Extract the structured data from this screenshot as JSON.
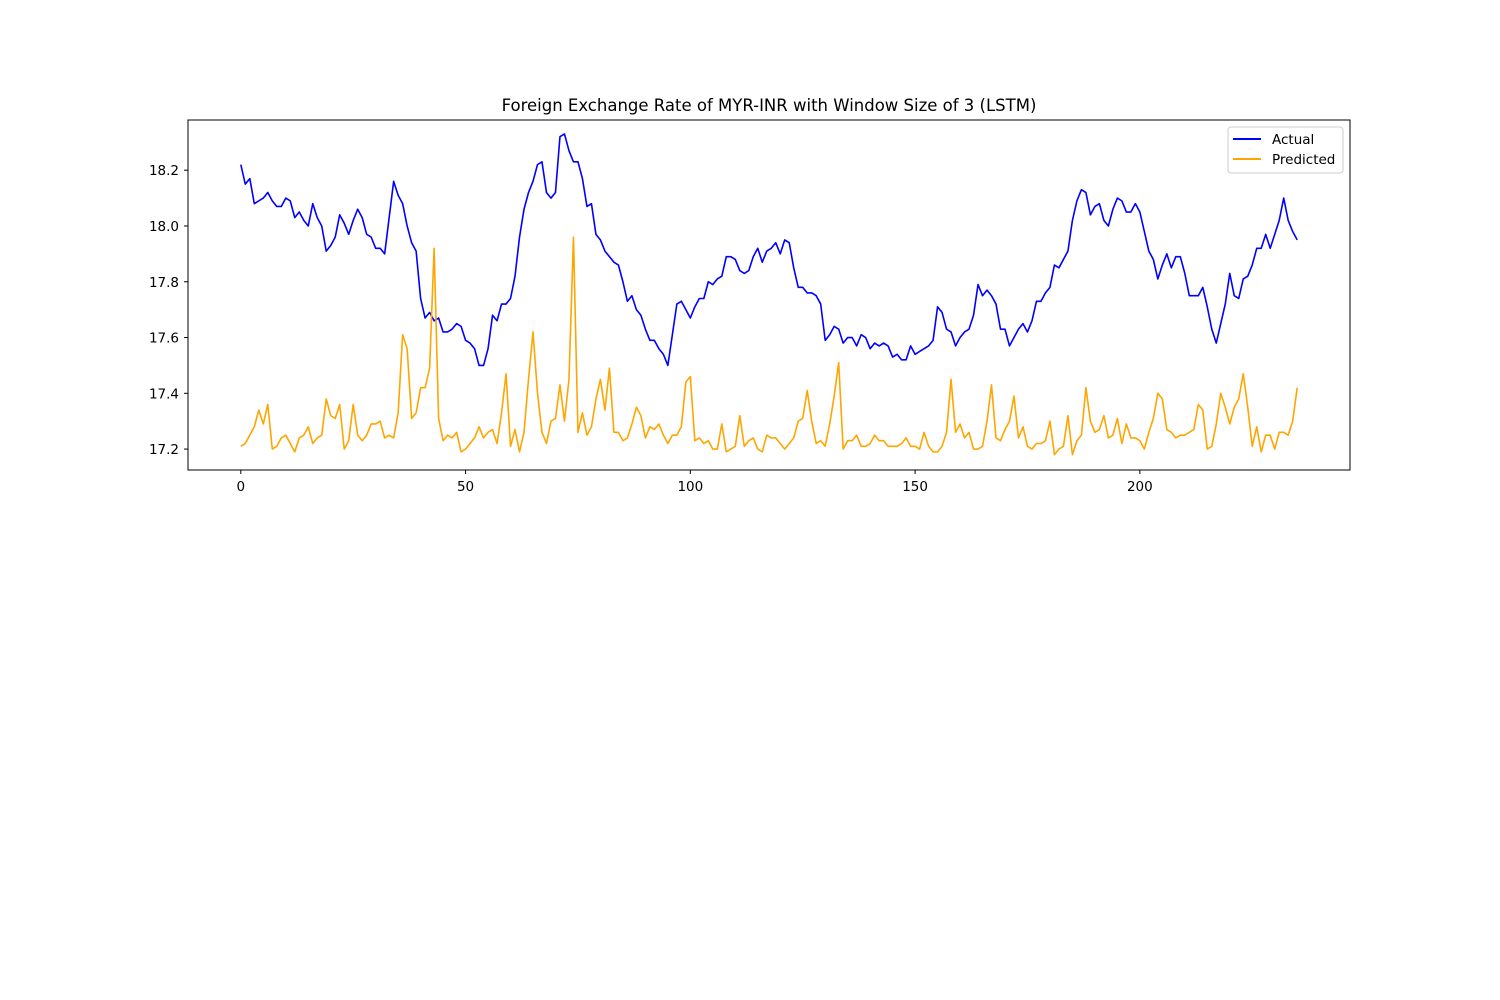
{
  "chart_data": {
    "type": "line",
    "title": "Foreign Exchange Rate of MYR-INR with Window Size of 3 (LSTM)",
    "xlabel": "",
    "ylabel": "",
    "xlim": [
      -11.75,
      246.75
    ],
    "ylim": [
      17.125,
      18.38
    ],
    "x_ticks": [
      0,
      50,
      100,
      150,
      200
    ],
    "y_ticks": [
      17.2,
      17.4,
      17.6,
      17.8,
      18.0,
      18.2
    ],
    "grid": false,
    "legend_position": "upper right",
    "series": [
      {
        "name": "Actual",
        "color": "#0000ff",
        "values": [
          18.22,
          18.15,
          18.17,
          18.08,
          18.09,
          18.1,
          18.12,
          18.09,
          18.07,
          18.07,
          18.1,
          18.09,
          18.03,
          18.05,
          18.02,
          18.0,
          18.08,
          18.03,
          18.0,
          17.91,
          17.93,
          17.96,
          18.04,
          18.01,
          17.97,
          18.02,
          18.06,
          18.03,
          17.97,
          17.96,
          17.92,
          17.92,
          17.9,
          18.03,
          18.16,
          18.11,
          18.08,
          18.0,
          17.94,
          17.91,
          17.74,
          17.67,
          17.69,
          17.66,
          17.67,
          17.62,
          17.62,
          17.63,
          17.65,
          17.64,
          17.59,
          17.58,
          17.56,
          17.5,
          17.5,
          17.56,
          17.68,
          17.66,
          17.72,
          17.72,
          17.74,
          17.82,
          17.96,
          18.06,
          18.12,
          18.16,
          18.22,
          18.23,
          18.12,
          18.1,
          18.12,
          18.32,
          18.33,
          18.27,
          18.23,
          18.23,
          18.17,
          18.07,
          18.08,
          17.97,
          17.95,
          17.91,
          17.89,
          17.87,
          17.86,
          17.8,
          17.73,
          17.75,
          17.7,
          17.68,
          17.63,
          17.59,
          17.59,
          17.56,
          17.54,
          17.5,
          17.61,
          17.72,
          17.73,
          17.7,
          17.67,
          17.71,
          17.74,
          17.74,
          17.8,
          17.79,
          17.81,
          17.82,
          17.89,
          17.89,
          17.88,
          17.84,
          17.83,
          17.84,
          17.89,
          17.92,
          17.87,
          17.91,
          17.92,
          17.94,
          17.9,
          17.95,
          17.94,
          17.85,
          17.78,
          17.78,
          17.76,
          17.76,
          17.75,
          17.72,
          17.59,
          17.61,
          17.64,
          17.63,
          17.58,
          17.6,
          17.6,
          17.57,
          17.61,
          17.6,
          17.56,
          17.58,
          17.57,
          17.58,
          17.57,
          17.53,
          17.54,
          17.52,
          17.52,
          17.57,
          17.54,
          17.55,
          17.56,
          17.57,
          17.59,
          17.71,
          17.69,
          17.63,
          17.62,
          17.57,
          17.6,
          17.62,
          17.63,
          17.68,
          17.79,
          17.75,
          17.77,
          17.75,
          17.72,
          17.63,
          17.63,
          17.57,
          17.6,
          17.63,
          17.65,
          17.62,
          17.66,
          17.73,
          17.73,
          17.76,
          17.78,
          17.86,
          17.85,
          17.88,
          17.91,
          18.02,
          18.09,
          18.13,
          18.12,
          18.04,
          18.07,
          18.08,
          18.02,
          18.0,
          18.06,
          18.1,
          18.09,
          18.05,
          18.05,
          18.08,
          18.05,
          17.98,
          17.91,
          17.88,
          17.81,
          17.86,
          17.9,
          17.85,
          17.89,
          17.89,
          17.83,
          17.75,
          17.75,
          17.75,
          17.78,
          17.71,
          17.63,
          17.58,
          17.65,
          17.72,
          17.83,
          17.75,
          17.74,
          17.81,
          17.82,
          17.86,
          17.92,
          17.92,
          17.97,
          17.92,
          17.97,
          18.02,
          18.1,
          18.02,
          17.98,
          17.95
        ]
      },
      {
        "name": "Predicted",
        "color": "#ffa500",
        "values": [
          17.21,
          17.22,
          17.25,
          17.28,
          17.34,
          17.29,
          17.36,
          17.2,
          17.21,
          17.24,
          17.25,
          17.22,
          17.19,
          17.24,
          17.25,
          17.28,
          17.22,
          17.24,
          17.25,
          17.38,
          17.32,
          17.31,
          17.36,
          17.2,
          17.23,
          17.36,
          17.25,
          17.23,
          17.25,
          17.29,
          17.29,
          17.3,
          17.24,
          17.25,
          17.24,
          17.33,
          17.61,
          17.56,
          17.31,
          17.33,
          17.42,
          17.42,
          17.49,
          17.92,
          17.31,
          17.23,
          17.25,
          17.24,
          17.26,
          17.19,
          17.2,
          17.22,
          17.24,
          17.28,
          17.24,
          17.26,
          17.27,
          17.22,
          17.33,
          17.47,
          17.21,
          17.27,
          17.19,
          17.26,
          17.45,
          17.62,
          17.4,
          17.26,
          17.22,
          17.3,
          17.31,
          17.43,
          17.3,
          17.45,
          17.96,
          17.26,
          17.33,
          17.25,
          17.28,
          17.38,
          17.45,
          17.34,
          17.49,
          17.26,
          17.26,
          17.23,
          17.24,
          17.29,
          17.35,
          17.32,
          17.24,
          17.28,
          17.27,
          17.29,
          17.25,
          17.22,
          17.25,
          17.25,
          17.28,
          17.44,
          17.46,
          17.23,
          17.24,
          17.22,
          17.23,
          17.2,
          17.2,
          17.29,
          17.19,
          17.2,
          17.21,
          17.32,
          17.21,
          17.23,
          17.24,
          17.2,
          17.19,
          17.25,
          17.24,
          17.24,
          17.22,
          17.2,
          17.22,
          17.24,
          17.3,
          17.31,
          17.41,
          17.3,
          17.22,
          17.23,
          17.21,
          17.29,
          17.39,
          17.51,
          17.2,
          17.23,
          17.23,
          17.25,
          17.21,
          17.21,
          17.22,
          17.25,
          17.23,
          17.23,
          17.21,
          17.21,
          17.21,
          17.22,
          17.24,
          17.21,
          17.21,
          17.2,
          17.26,
          17.21,
          17.19,
          17.19,
          17.21,
          17.26,
          17.45,
          17.26,
          17.29,
          17.24,
          17.26,
          17.2,
          17.2,
          17.21,
          17.3,
          17.43,
          17.24,
          17.23,
          17.27,
          17.3,
          17.39,
          17.24,
          17.28,
          17.21,
          17.2,
          17.22,
          17.22,
          17.23,
          17.3,
          17.18,
          17.2,
          17.21,
          17.32,
          17.18,
          17.23,
          17.25,
          17.42,
          17.3,
          17.26,
          17.27,
          17.32,
          17.24,
          17.25,
          17.31,
          17.22,
          17.29,
          17.24,
          17.24,
          17.23,
          17.2,
          17.26,
          17.31,
          17.4,
          17.38,
          17.27,
          17.26,
          17.24,
          17.25,
          17.25,
          17.26,
          17.27,
          17.36,
          17.34,
          17.2,
          17.21,
          17.29,
          17.4,
          17.35,
          17.29,
          17.35,
          17.38,
          17.47,
          17.35,
          17.21,
          17.28,
          17.19,
          17.25,
          17.25,
          17.2,
          17.26,
          17.26,
          17.25,
          17.3,
          17.42
        ]
      }
    ]
  }
}
